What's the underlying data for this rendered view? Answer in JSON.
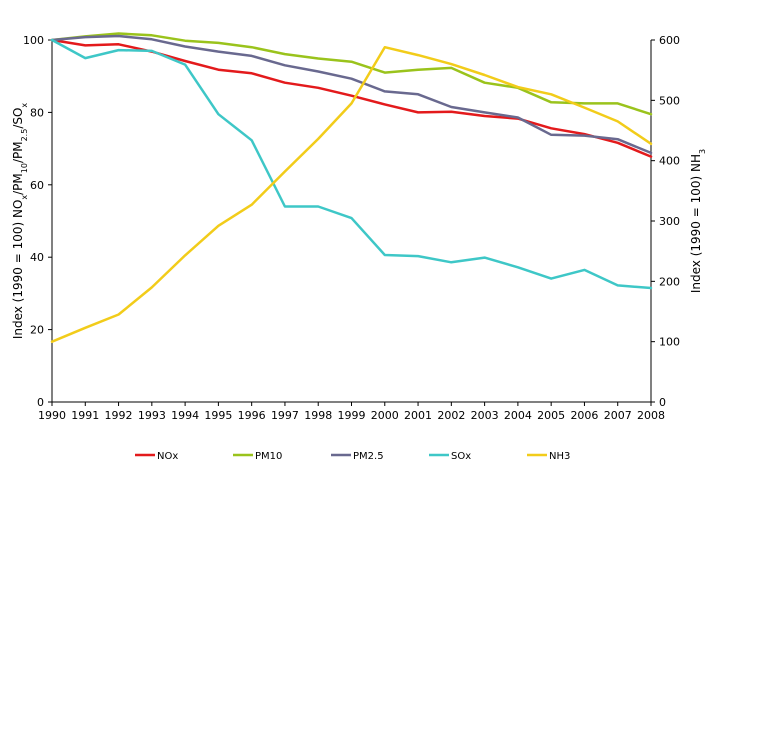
{
  "chart_data": {
    "type": "line",
    "x": [
      "1990",
      "1991",
      "1992",
      "1993",
      "1994",
      "1995",
      "1996",
      "1997",
      "1998",
      "1999",
      "2000",
      "2001",
      "2002",
      "2003",
      "2004",
      "2005",
      "2006",
      "2007",
      "2008"
    ],
    "left_axis": {
      "label_parts": [
        {
          "text": "Index (1990 = 100) NO",
          "shift": "normal"
        },
        {
          "text": "x",
          "shift": "sub"
        },
        {
          "text": "/PM",
          "shift": "normal"
        },
        {
          "text": "10",
          "shift": "sub"
        },
        {
          "text": "/PM",
          "shift": "normal"
        },
        {
          "text": "2.5",
          "shift": "sub"
        },
        {
          "text": "/SO",
          "shift": "normal"
        },
        {
          "text": "x",
          "shift": "sub"
        }
      ],
      "ylim": [
        0,
        100
      ],
      "ticks": [
        0,
        20,
        40,
        60,
        80,
        100
      ]
    },
    "right_axis": {
      "label_parts": [
        {
          "text": "Index (1990 = 100) NH",
          "shift": "normal"
        },
        {
          "text": "3",
          "shift": "sub"
        }
      ],
      "ylim": [
        0,
        600
      ],
      "ticks": [
        0,
        100,
        200,
        300,
        400,
        500,
        600
      ]
    },
    "series": [
      {
        "name": "NOx",
        "color": "#e31a1c",
        "axis": "left",
        "values": [
          100,
          98.5,
          98.8,
          96.8,
          94.2,
          91.8,
          90.8,
          88.2,
          86.8,
          84.6,
          82.2,
          80.0,
          80.2,
          79.0,
          78.3,
          75.6,
          74.0,
          71.6,
          67.8
        ]
      },
      {
        "name": "PM10",
        "color": "#9ac31c",
        "axis": "left",
        "values": [
          100,
          101.0,
          101.8,
          101.3,
          99.8,
          99.2,
          98.0,
          96.1,
          94.9,
          94.0,
          91.0,
          91.8,
          92.3,
          88.2,
          86.8,
          82.8,
          82.5,
          82.5,
          79.5
        ]
      },
      {
        "name": "PM2.5",
        "color": "#69698f",
        "axis": "left",
        "values": [
          100,
          100.8,
          101.1,
          100.2,
          98.2,
          96.8,
          95.6,
          93.0,
          91.3,
          89.3,
          85.8,
          85.0,
          81.5,
          80.0,
          78.6,
          73.8,
          73.6,
          72.6,
          68.8
        ]
      },
      {
        "name": "SOx",
        "color": "#3ec7c7",
        "axis": "left",
        "values": [
          100,
          95.0,
          97.2,
          97.0,
          93.2,
          79.5,
          72.3,
          54.0,
          54.0,
          50.8,
          40.6,
          40.3,
          38.6,
          39.9,
          37.2,
          34.1,
          36.5,
          32.2,
          31.5
        ]
      },
      {
        "name": "NH3",
        "color": "#f2cc1a",
        "axis": "right",
        "values": [
          100,
          123,
          145,
          190,
          243,
          292,
          327,
          382,
          436,
          495,
          588,
          575,
          560,
          542,
          522,
          510,
          488,
          465,
          428
        ]
      }
    ],
    "grid": false,
    "legend_position": "bottom"
  }
}
